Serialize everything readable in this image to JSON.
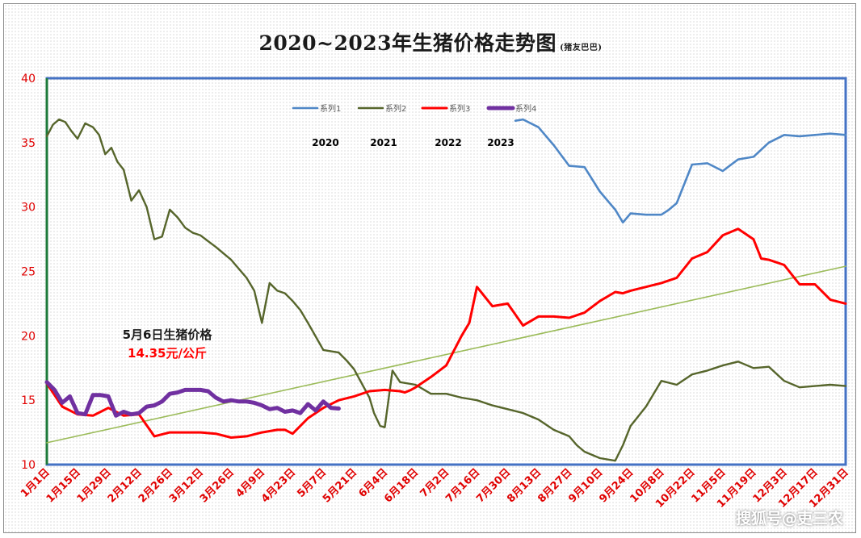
{
  "chart_data": {
    "type": "line",
    "title": "2020~2023年生猪价格走势图",
    "subtitle": "(猪友巴巴)",
    "ylim": [
      10,
      40
    ],
    "yticks": [
      10,
      15,
      20,
      25,
      30,
      35,
      40
    ],
    "xlim": [
      0,
      52
    ],
    "x_tick_labels": [
      "1月1日",
      "1月15日",
      "1月29日",
      "2月12日",
      "2月26日",
      "3月12日",
      "3月26日",
      "4月9日",
      "4月23日",
      "5月7日",
      "5月21日",
      "6月4日",
      "6月18日",
      "7月2日",
      "7月16日",
      "7月30日",
      "8月13日",
      "8月27日",
      "9月10日",
      "9月24日",
      "10月8日",
      "10月22日",
      "11月5日",
      "11月19日",
      "12月3日",
      "12月17日",
      "12月31日"
    ],
    "legend": [
      "系列1",
      "系列2",
      "系列3",
      "系列4"
    ],
    "legend_years": [
      "2020",
      "2021",
      "2022",
      "2023"
    ],
    "annotation": [
      "5月6日生猪价格",
      "14.35元/公斤"
    ],
    "grid": "dotted",
    "colors": {
      "s1": "#4f87c6",
      "s2": "#56652b",
      "s3": "#ff0000",
      "s4": "#7030a0",
      "trend": "#9bbb59",
      "axis_left": "#1d7a3a",
      "plot_border": "#4472c4"
    },
    "series": [
      {
        "name": "系列1",
        "x": [
          30.5,
          31,
          32,
          33,
          34,
          35,
          36,
          37,
          37.5,
          38,
          39,
          40,
          40.5,
          41,
          42,
          43,
          44,
          45,
          46,
          47,
          48,
          49,
          50,
          51,
          52
        ],
        "y": [
          36.7,
          36.8,
          36.2,
          34.8,
          33.2,
          33.1,
          31.2,
          29.8,
          28.8,
          29.5,
          29.4,
          29.4,
          29.8,
          30.3,
          33.3,
          33.4,
          32.8,
          33.7,
          33.9,
          35.0,
          35.6,
          35.5,
          35.6,
          35.7,
          35.6
        ]
      },
      {
        "name": "系列2",
        "x": [
          0,
          0.4,
          0.8,
          1.2,
          1.6,
          2,
          2.5,
          3,
          3.4,
          3.8,
          4.2,
          4.6,
          5,
          5.5,
          6,
          6.5,
          7,
          7.5,
          8,
          8.5,
          9,
          9.5,
          10,
          11,
          12,
          13,
          13.5,
          14,
          14.5,
          15,
          15.5,
          16,
          16.5,
          17,
          18,
          19,
          19.5,
          20,
          21,
          21.3,
          21.7,
          22,
          22.5,
          23,
          24,
          25,
          26,
          27,
          28,
          29,
          30,
          31,
          32,
          33,
          34,
          34.5,
          35,
          36,
          37,
          37.5,
          38,
          39,
          40,
          41,
          42,
          43,
          44,
          45,
          46,
          47,
          48,
          49,
          50,
          51,
          52
        ],
        "y": [
          35.5,
          36.4,
          36.8,
          36.6,
          35.9,
          35.3,
          36.5,
          36.2,
          35.6,
          34.1,
          34.6,
          33.5,
          32.9,
          30.5,
          31.3,
          30.0,
          27.5,
          27.7,
          29.8,
          29.2,
          28.4,
          28.0,
          27.8,
          26.9,
          25.9,
          24.5,
          23.5,
          21.0,
          24.1,
          23.5,
          23.3,
          22.7,
          22.0,
          21.0,
          18.9,
          18.7,
          18.1,
          17.4,
          15.2,
          14.0,
          13.0,
          12.9,
          17.3,
          16.4,
          16.2,
          15.5,
          15.5,
          15.2,
          15.0,
          14.6,
          14.3,
          14.0,
          13.5,
          12.7,
          12.2,
          11.5,
          11.0,
          10.5,
          10.3,
          11.5,
          13.0,
          14.5,
          16.5,
          16.2,
          17.0,
          17.3,
          17.7,
          18.0,
          17.5,
          17.6,
          16.5,
          16.0,
          16.1,
          16.2,
          16.1
        ]
      },
      {
        "name": "系列3",
        "x": [
          0,
          1,
          2,
          3,
          4,
          5,
          6,
          7,
          8,
          9,
          10,
          11,
          12,
          13,
          14,
          15,
          15.5,
          16,
          17,
          18,
          19,
          20,
          21,
          22,
          23,
          23.3,
          23.7,
          24,
          25,
          26,
          27,
          27.5,
          28,
          29,
          30,
          31,
          32,
          33,
          34,
          35,
          36,
          37,
          37.5,
          38,
          39,
          40,
          40.5,
          41,
          42,
          43,
          44,
          45,
          46,
          46.5,
          47,
          48,
          49,
          50,
          51,
          52
        ],
        "y": [
          16.3,
          14.5,
          13.9,
          13.8,
          14.4,
          13.8,
          13.9,
          12.2,
          12.5,
          12.5,
          12.5,
          12.4,
          12.1,
          12.2,
          12.5,
          12.7,
          12.7,
          12.4,
          13.6,
          14.4,
          15.0,
          15.3,
          15.7,
          15.8,
          15.7,
          15.6,
          15.8,
          16.0,
          16.8,
          17.7,
          20.0,
          21.0,
          23.8,
          22.3,
          22.5,
          20.8,
          21.5,
          21.5,
          21.4,
          21.8,
          22.7,
          23.4,
          23.3,
          23.5,
          23.8,
          24.1,
          24.3,
          24.5,
          26.0,
          26.5,
          27.8,
          28.3,
          27.5,
          26.0,
          25.9,
          25.5,
          24.0,
          24.0,
          22.8,
          22.5
        ]
      },
      {
        "name": "系列4",
        "x": [
          0,
          0.5,
          1,
          1.5,
          2,
          2.5,
          3,
          3.5,
          4,
          4.5,
          5,
          5.5,
          6,
          6.5,
          7,
          7.5,
          8,
          8.5,
          9,
          9.5,
          10,
          10.5,
          11,
          11.5,
          12,
          12.5,
          13,
          13.5,
          14,
          14.5,
          15,
          15.5,
          16,
          16.5,
          17,
          17.5,
          18,
          18.5,
          19
        ],
        "y": [
          16.4,
          15.8,
          14.8,
          15.3,
          14.0,
          13.9,
          15.4,
          15.4,
          15.3,
          13.8,
          14.1,
          13.9,
          14.0,
          14.5,
          14.6,
          14.9,
          15.5,
          15.6,
          15.8,
          15.8,
          15.8,
          15.7,
          15.2,
          14.9,
          15.0,
          14.9,
          14.9,
          14.8,
          14.6,
          14.3,
          14.4,
          14.1,
          14.2,
          14.0,
          14.7,
          14.2,
          14.9,
          14.4,
          14.35
        ]
      },
      {
        "name": "trend",
        "x": [
          0,
          52
        ],
        "y": [
          11.7,
          25.4
        ]
      }
    ]
  },
  "watermark": "搜狐号@吏三农"
}
